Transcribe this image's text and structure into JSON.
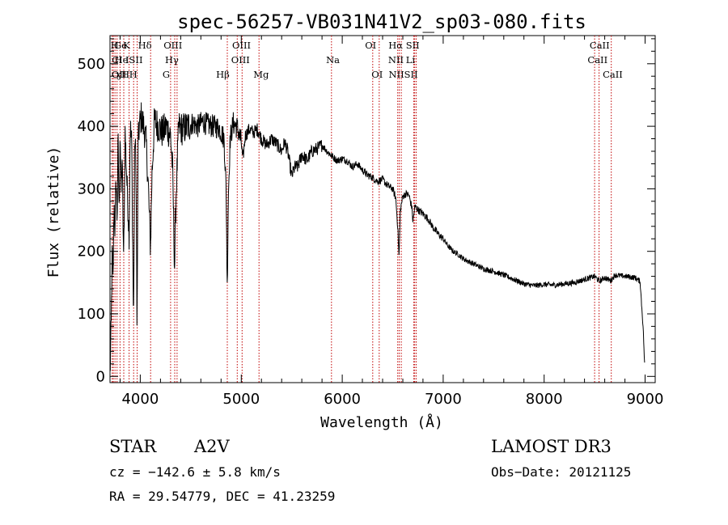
{
  "chart_data": {
    "type": "line",
    "title": "spec-56257-VB031N41V2_sp03-080.fits",
    "xlabel": "Wavelength (Å)",
    "ylabel": "Flux (relative)",
    "xlim": [
      3700,
      9100
    ],
    "ylim": [
      -10,
      545
    ],
    "xticks": [
      4000,
      5000,
      6000,
      7000,
      8000,
      9000
    ],
    "yticks": [
      0,
      100,
      200,
      300,
      400,
      500
    ],
    "spectrum_anchors": [
      [
        3700,
        0
      ],
      [
        3712,
        80
      ],
      [
        3722,
        200
      ],
      [
        3730,
        150
      ],
      [
        3740,
        280
      ],
      [
        3750,
        230
      ],
      [
        3760,
        320
      ],
      [
        3770,
        250
      ],
      [
        3780,
        380
      ],
      [
        3790,
        260
      ],
      [
        3800,
        400
      ],
      [
        3810,
        290
      ],
      [
        3820,
        350
      ],
      [
        3835,
        180
      ],
      [
        3850,
        390
      ],
      [
        3870,
        300
      ],
      [
        3889,
        230
      ],
      [
        3900,
        400
      ],
      [
        3915,
        370
      ],
      [
        3933,
        80
      ],
      [
        3945,
        390
      ],
      [
        3958,
        330
      ],
      [
        3968,
        60
      ],
      [
        3978,
        370
      ],
      [
        3990,
        400
      ],
      [
        4010,
        415
      ],
      [
        4040,
        395
      ],
      [
        4060,
        370
      ],
      [
        4080,
        300
      ],
      [
        4101,
        205
      ],
      [
        4115,
        320
      ],
      [
        4140,
        410
      ],
      [
        4180,
        400
      ],
      [
        4220,
        390
      ],
      [
        4260,
        400
      ],
      [
        4300,
        385
      ],
      [
        4320,
        330
      ],
      [
        4340,
        170
      ],
      [
        4352,
        280
      ],
      [
        4380,
        400
      ],
      [
        4420,
        395
      ],
      [
        4470,
        400
      ],
      [
        4520,
        405
      ],
      [
        4570,
        400
      ],
      [
        4620,
        408
      ],
      [
        4670,
        402
      ],
      [
        4720,
        400
      ],
      [
        4780,
        398
      ],
      [
        4830,
        380
      ],
      [
        4850,
        300
      ],
      [
        4861,
        140
      ],
      [
        4872,
        290
      ],
      [
        4890,
        380
      ],
      [
        4920,
        405
      ],
      [
        4960,
        398
      ],
      [
        5000,
        375
      ],
      [
        5015,
        345
      ],
      [
        5040,
        385
      ],
      [
        5080,
        395
      ],
      [
        5120,
        390
      ],
      [
        5160,
        395
      ],
      [
        5200,
        380
      ],
      [
        5250,
        370
      ],
      [
        5300,
        380
      ],
      [
        5350,
        372
      ],
      [
        5400,
        360
      ],
      [
        5430,
        375
      ],
      [
        5460,
        360
      ],
      [
        5500,
        320
      ],
      [
        5530,
        335
      ],
      [
        5560,
        335
      ],
      [
        5600,
        355
      ],
      [
        5650,
        345
      ],
      [
        5700,
        360
      ],
      [
        5760,
        365
      ],
      [
        5800,
        370
      ],
      [
        5850,
        360
      ],
      [
        5900,
        352
      ],
      [
        5950,
        345
      ],
      [
        6000,
        348
      ],
      [
        6050,
        345
      ],
      [
        6100,
        335
      ],
      [
        6150,
        340
      ],
      [
        6200,
        330
      ],
      [
        6250,
        322
      ],
      [
        6300,
        318
      ],
      [
        6350,
        312
      ],
      [
        6400,
        315
      ],
      [
        6450,
        305
      ],
      [
        6500,
        300
      ],
      [
        6530,
        285
      ],
      [
        6550,
        240
      ],
      [
        6563,
        190
      ],
      [
        6575,
        265
      ],
      [
        6600,
        288
      ],
      [
        6630,
        292
      ],
      [
        6660,
        290
      ],
      [
        6690,
        270
      ],
      [
        6700,
        248
      ],
      [
        6720,
        272
      ],
      [
        6760,
        265
      ],
      [
        6800,
        260
      ],
      [
        6850,
        252
      ],
      [
        6900,
        238
      ],
      [
        6950,
        228
      ],
      [
        7000,
        220
      ],
      [
        7050,
        208
      ],
      [
        7100,
        200
      ],
      [
        7150,
        195
      ],
      [
        7200,
        188
      ],
      [
        7300,
        180
      ],
      [
        7400,
        172
      ],
      [
        7500,
        168
      ],
      [
        7600,
        162
      ],
      [
        7700,
        155
      ],
      [
        7800,
        148
      ],
      [
        7900,
        145
      ],
      [
        8000,
        147
      ],
      [
        8100,
        146
      ],
      [
        8200,
        148
      ],
      [
        8300,
        150
      ],
      [
        8400,
        155
      ],
      [
        8500,
        160
      ],
      [
        8550,
        152
      ],
      [
        8600,
        158
      ],
      [
        8660,
        153
      ],
      [
        8700,
        162
      ],
      [
        8800,
        160
      ],
      [
        8900,
        158
      ],
      [
        8950,
        152
      ],
      [
        8980,
        80
      ],
      [
        8995,
        20
      ]
    ],
    "line_markers": [
      {
        "name": "HK",
        "wl": 3722
      },
      {
        "name": "CII",
        "wl": 3733
      },
      {
        "name": "He",
        "wl": 3750
      },
      {
        "name": "G",
        "wl": 3770
      },
      {
        "name": "H",
        "wl": 3799
      },
      {
        "name": "K",
        "wl": 3836
      },
      {
        "name": "HeI",
        "wl": 3889
      },
      {
        "name": "SII",
        "wl": 3934
      },
      {
        "name": "Hε",
        "wl": 3969
      },
      {
        "name": "Hδ",
        "wl": 4102
      },
      {
        "name": "OII",
        "wl": 4300
      },
      {
        "name": "Hγ",
        "wl": 4341
      },
      {
        "name": "OIII",
        "wl": 4364
      },
      {
        "name": "Hβ",
        "wl": 4862
      },
      {
        "name": "OIII",
        "wl": 4960
      },
      {
        "name": "OIII",
        "wl": 5008
      },
      {
        "name": "Mg",
        "wl": 5176
      },
      {
        "name": "Na",
        "wl": 5894
      },
      {
        "name": "OI",
        "wl": 6302
      },
      {
        "name": "OI",
        "wl": 6366
      },
      {
        "name": "NII",
        "wl": 6550
      },
      {
        "name": "Hα",
        "wl": 6565
      },
      {
        "name": "NII",
        "wl": 6585
      },
      {
        "name": "Li",
        "wl": 6709
      },
      {
        "name": "SII",
        "wl": 6718
      },
      {
        "name": "SII",
        "wl": 6733
      },
      {
        "name": "CaII",
        "wl": 8500
      },
      {
        "name": "CaII",
        "wl": 8544
      },
      {
        "name": "CaII",
        "wl": 8665
      }
    ],
    "line_labels": [
      {
        "text": "H",
        "wl": 3706,
        "row": 0
      },
      {
        "text": "OII",
        "wl": 3715,
        "row": 2
      },
      {
        "text": "Cl",
        "wl": 3718,
        "row": 1
      },
      {
        "text": "Ge",
        "wl": 3740,
        "row": 0
      },
      {
        "text": "He",
        "wl": 3745,
        "row": 1
      },
      {
        "text": "ɣH",
        "wl": 3757,
        "row": 2
      },
      {
        "text": "K",
        "wl": 3830,
        "row": 0
      },
      {
        "text": "ISII",
        "wl": 3852,
        "row": 1
      },
      {
        "text": "H",
        "wl": 3890,
        "row": 2
      },
      {
        "text": "Hδ",
        "wl": 3977,
        "row": 0
      },
      {
        "text": "OIII",
        "wl": 4230,
        "row": 0
      },
      {
        "text": "Hγ",
        "wl": 4245,
        "row": 1
      },
      {
        "text": "G",
        "wl": 4220,
        "row": 2
      },
      {
        "text": "Hβ",
        "wl": 4750,
        "row": 2
      },
      {
        "text": "OIII",
        "wl": 4910,
        "row": 0
      },
      {
        "text": "OIII",
        "wl": 4900,
        "row": 1
      },
      {
        "text": "Mg",
        "wl": 5120,
        "row": 2
      },
      {
        "text": "Na",
        "wl": 5840,
        "row": 1
      },
      {
        "text": "OI",
        "wl": 6225,
        "row": 0
      },
      {
        "text": "OI",
        "wl": 6290,
        "row": 2
      },
      {
        "text": "Hα",
        "wl": 6458,
        "row": 0
      },
      {
        "text": "SII",
        "wl": 6630,
        "row": 0
      },
      {
        "text": "NII",
        "wl": 6455,
        "row": 1
      },
      {
        "text": "Li",
        "wl": 6630,
        "row": 1
      },
      {
        "text": "NIISII",
        "wl": 6460,
        "row": 2
      },
      {
        "text": "CaII",
        "wl": 8450,
        "row": 0
      },
      {
        "text": "CaII",
        "wl": 8430,
        "row": 1
      },
      {
        "text": "CaII",
        "wl": 8580,
        "row": 2
      }
    ]
  },
  "info": {
    "object_type": "STAR",
    "subclass": "A2V",
    "survey": "LAMOST DR3",
    "cz_line": "cz = −142.6 ± 5.8 km/s",
    "obs_date_line": "Obs−Date: 20121125",
    "radec_line": "RA =  29.54779, DEC =  41.23259"
  }
}
